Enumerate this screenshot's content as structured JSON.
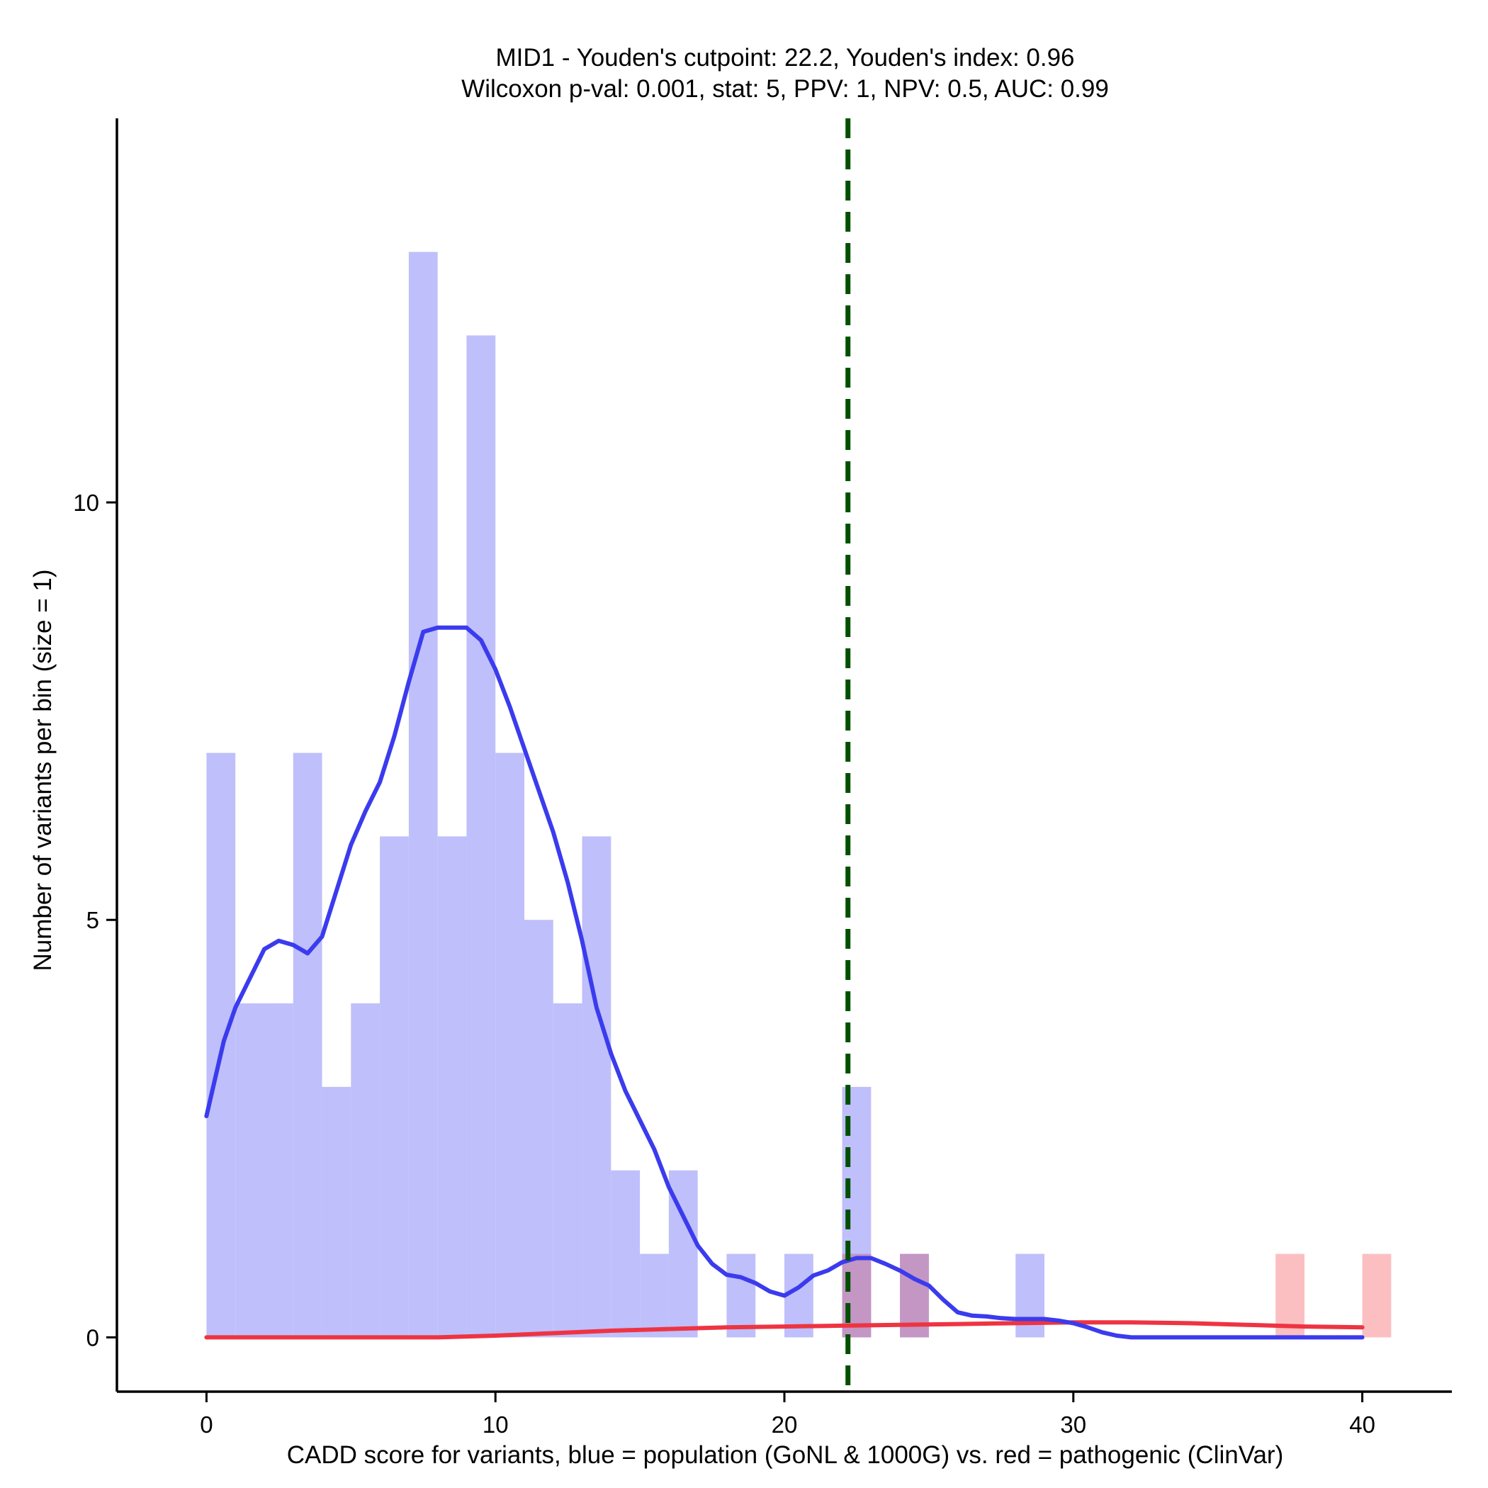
{
  "chart_data": {
    "type": "bar",
    "title_line1": "MID1 - Youden's cutpoint: 22.2, Youden's index: 0.96",
    "title_line2": "Wilcoxon p-val: 0.001, stat: 5, PPV: 1, NPV: 0.5, AUC: 0.99",
    "xlabel": "CADD score for variants, blue = population (GoNL & 1000G) vs. red = pathogenic (ClinVar)",
    "ylabel": "Number of variants per bin (size = 1)",
    "xlim": [
      -3.1,
      43.1
    ],
    "ylim": [
      -0.65,
      14.6
    ],
    "x_ticks": [
      0,
      10,
      20,
      30,
      40
    ],
    "y_ticks": [
      0,
      5,
      10
    ],
    "bin_width": 1,
    "cutpoint": 22.2,
    "colors": {
      "population_bar": "#bfbffb",
      "pathogenic_bar": "#fcbfc1",
      "overlap_bar": "#c396c4",
      "population_line": "#3b3bee",
      "pathogenic_line": "#ee3442",
      "cutpoint_line": "#005000"
    },
    "series": [
      {
        "name": "population",
        "bins": [
          {
            "x": 0,
            "count": 7
          },
          {
            "x": 1,
            "count": 4
          },
          {
            "x": 2,
            "count": 4
          },
          {
            "x": 3,
            "count": 7
          },
          {
            "x": 4,
            "count": 3
          },
          {
            "x": 5,
            "count": 4
          },
          {
            "x": 6,
            "count": 6
          },
          {
            "x": 7,
            "count": 13
          },
          {
            "x": 8,
            "count": 6
          },
          {
            "x": 9,
            "count": 12
          },
          {
            "x": 10,
            "count": 7
          },
          {
            "x": 11,
            "count": 5
          },
          {
            "x": 12,
            "count": 4
          },
          {
            "x": 13,
            "count": 6
          },
          {
            "x": 14,
            "count": 2
          },
          {
            "x": 15,
            "count": 1
          },
          {
            "x": 16,
            "count": 2
          },
          {
            "x": 17,
            "count": 0
          },
          {
            "x": 18,
            "count": 1
          },
          {
            "x": 20,
            "count": 1
          },
          {
            "x": 22,
            "count": 3
          },
          {
            "x": 24,
            "count": 1
          },
          {
            "x": 28,
            "count": 1
          }
        ],
        "density": [
          [
            0,
            2.65
          ],
          [
            0.3,
            3.1
          ],
          [
            0.6,
            3.55
          ],
          [
            1,
            3.95
          ],
          [
            1.5,
            4.3
          ],
          [
            2,
            4.65
          ],
          [
            2.5,
            4.75
          ],
          [
            3,
            4.7
          ],
          [
            3.5,
            4.6
          ],
          [
            4,
            4.8
          ],
          [
            4.5,
            5.35
          ],
          [
            5,
            5.9
          ],
          [
            5.5,
            6.3
          ],
          [
            6,
            6.65
          ],
          [
            6.5,
            7.2
          ],
          [
            7,
            7.85
          ],
          [
            7.5,
            8.45
          ],
          [
            8,
            8.5
          ],
          [
            8.5,
            8.5
          ],
          [
            9,
            8.5
          ],
          [
            9.5,
            8.35
          ],
          [
            10,
            8.0
          ],
          [
            10.5,
            7.55
          ],
          [
            11,
            7.05
          ],
          [
            11.5,
            6.55
          ],
          [
            12,
            6.05
          ],
          [
            12.5,
            5.45
          ],
          [
            13,
            4.75
          ],
          [
            13.5,
            3.95
          ],
          [
            14,
            3.4
          ],
          [
            14.5,
            2.95
          ],
          [
            15,
            2.6
          ],
          [
            15.5,
            2.25
          ],
          [
            16,
            1.8
          ],
          [
            16.5,
            1.45
          ],
          [
            17,
            1.1
          ],
          [
            17.5,
            0.88
          ],
          [
            18,
            0.75
          ],
          [
            18.5,
            0.72
          ],
          [
            19,
            0.65
          ],
          [
            19.5,
            0.55
          ],
          [
            20,
            0.5
          ],
          [
            20.5,
            0.6
          ],
          [
            21,
            0.74
          ],
          [
            21.5,
            0.8
          ],
          [
            22,
            0.9
          ],
          [
            22.5,
            0.95
          ],
          [
            23,
            0.95
          ],
          [
            23.5,
            0.88
          ],
          [
            24,
            0.8
          ],
          [
            24.5,
            0.7
          ],
          [
            25,
            0.62
          ],
          [
            25.5,
            0.45
          ],
          [
            26,
            0.3
          ],
          [
            26.5,
            0.26
          ],
          [
            27,
            0.25
          ],
          [
            27.5,
            0.23
          ],
          [
            28,
            0.22
          ],
          [
            28.5,
            0.22
          ],
          [
            29,
            0.22
          ],
          [
            29.5,
            0.2
          ],
          [
            30,
            0.17
          ],
          [
            30.5,
            0.12
          ],
          [
            31,
            0.06
          ],
          [
            31.5,
            0.02
          ],
          [
            32,
            0.0
          ],
          [
            34,
            0.0
          ],
          [
            36,
            0.0
          ],
          [
            38,
            0.0
          ],
          [
            40,
            0.0
          ]
        ]
      },
      {
        "name": "pathogenic",
        "bins": [
          {
            "x": 22,
            "count": 1
          },
          {
            "x": 24,
            "count": 1
          },
          {
            "x": 37,
            "count": 1
          },
          {
            "x": 40,
            "count": 1
          }
        ],
        "density": [
          [
            0,
            0.0
          ],
          [
            2,
            0.0
          ],
          [
            4,
            0.0
          ],
          [
            6,
            0.0
          ],
          [
            8,
            0.0
          ],
          [
            10,
            0.02
          ],
          [
            12,
            0.05
          ],
          [
            14,
            0.08
          ],
          [
            16,
            0.1
          ],
          [
            18,
            0.12
          ],
          [
            20,
            0.13
          ],
          [
            22,
            0.14
          ],
          [
            24,
            0.15
          ],
          [
            26,
            0.16
          ],
          [
            28,
            0.17
          ],
          [
            30,
            0.18
          ],
          [
            32,
            0.18
          ],
          [
            34,
            0.17
          ],
          [
            36,
            0.15
          ],
          [
            38,
            0.13
          ],
          [
            40,
            0.12
          ]
        ]
      }
    ]
  }
}
